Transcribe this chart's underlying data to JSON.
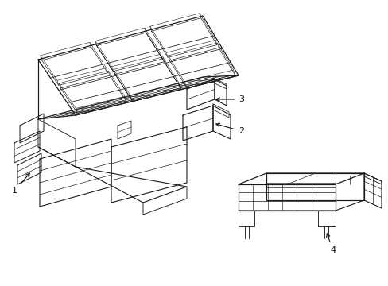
{
  "background_color": "#ffffff",
  "line_color": "#1a1a1a",
  "line_width": 0.8,
  "label_color": "#111111",
  "label_fontsize": 8,
  "figure_width": 4.89,
  "figure_height": 3.6,
  "dpi": 100
}
